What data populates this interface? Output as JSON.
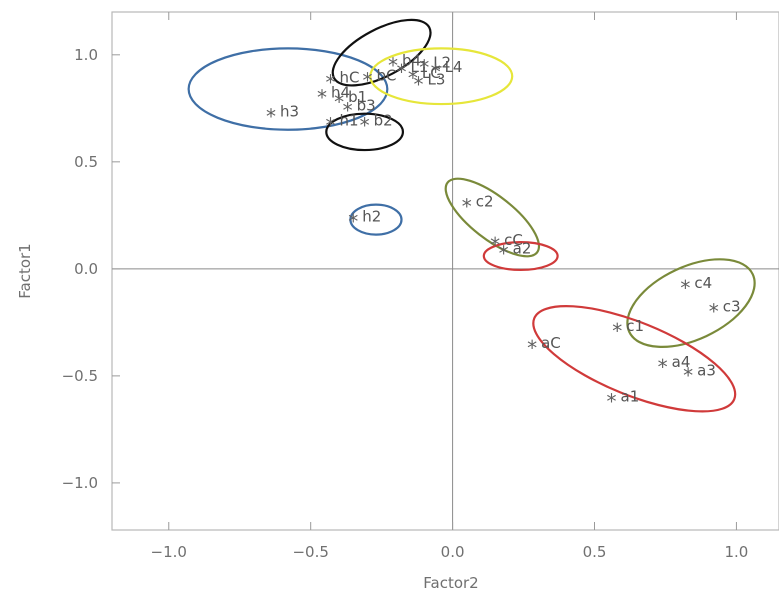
{
  "chart_data": {
    "type": "scatter",
    "title": "",
    "xlabel": "Factor2",
    "ylabel": "Factor1",
    "xlim": [
      -1.2,
      1.15
    ],
    "ylim": [
      -1.22,
      1.2
    ],
    "xticks": [
      -1.0,
      -0.5,
      0.0,
      0.5,
      1.0
    ],
    "xtick_labels": [
      "−1.0",
      "−0.5",
      "0.0",
      "0.5",
      "1.0"
    ],
    "yticks": [
      -1.0,
      -0.5,
      0.0,
      0.5,
      1.0
    ],
    "ytick_labels": [
      "−1.0",
      "−0.5",
      "0.0",
      "0.5",
      "1.0"
    ],
    "marker": "*",
    "grid": false,
    "zero_lines": true,
    "points": [
      {
        "label": "h3",
        "x": -0.64,
        "y": 0.72
      },
      {
        "label": "h4",
        "x": -0.46,
        "y": 0.81
      },
      {
        "label": "hC",
        "x": -0.43,
        "y": 0.88
      },
      {
        "label": "b1",
        "x": -0.4,
        "y": 0.79
      },
      {
        "label": "b3",
        "x": -0.37,
        "y": 0.75
      },
      {
        "label": "h1",
        "x": -0.43,
        "y": 0.68
      },
      {
        "label": "bC",
        "x": -0.3,
        "y": 0.89
      },
      {
        "label": "b2",
        "x": -0.31,
        "y": 0.68
      },
      {
        "label": "b4",
        "x": -0.21,
        "y": 0.96
      },
      {
        "label": "L1",
        "x": -0.18,
        "y": 0.93
      },
      {
        "label": "L2",
        "x": -0.1,
        "y": 0.95
      },
      {
        "label": "L4",
        "x": -0.06,
        "y": 0.93
      },
      {
        "label": "L3",
        "x": -0.12,
        "y": 0.87
      },
      {
        "label": "LC",
        "x": -0.14,
        "y": 0.9
      },
      {
        "label": "h2",
        "x": -0.35,
        "y": 0.23
      },
      {
        "label": "c2",
        "x": 0.05,
        "y": 0.3
      },
      {
        "label": "cC",
        "x": 0.15,
        "y": 0.12
      },
      {
        "label": "a2",
        "x": 0.18,
        "y": 0.08
      },
      {
        "label": "c4",
        "x": 0.82,
        "y": -0.08
      },
      {
        "label": "c3",
        "x": 0.92,
        "y": -0.19
      },
      {
        "label": "c1",
        "x": 0.58,
        "y": -0.28
      },
      {
        "label": "aC",
        "x": 0.28,
        "y": -0.36
      },
      {
        "label": "a4",
        "x": 0.74,
        "y": -0.45
      },
      {
        "label": "a3",
        "x": 0.83,
        "y": -0.49
      },
      {
        "label": "a1",
        "x": 0.56,
        "y": -0.61
      }
    ],
    "clusters": [
      {
        "color": "#3f6fa6",
        "center": [
          -0.58,
          0.84
        ],
        "radii": [
          0.35,
          0.19
        ],
        "angle": 0
      },
      {
        "color": "#111111",
        "center": [
          -0.25,
          1.01
        ],
        "radii": [
          0.19,
          0.11
        ],
        "angle": 28
      },
      {
        "color": "#e6e63a",
        "center": [
          -0.04,
          0.9
        ],
        "radii": [
          0.25,
          0.13
        ],
        "angle": 0
      },
      {
        "color": "#111111",
        "center": [
          -0.31,
          0.64
        ],
        "radii": [
          0.135,
          0.085
        ],
        "angle": 0
      },
      {
        "color": "#3f6fa6",
        "center": [
          -0.27,
          0.23
        ],
        "radii": [
          0.09,
          0.07
        ],
        "angle": 0
      },
      {
        "color": "#7a8a3a",
        "center": [
          0.14,
          0.24
        ],
        "radii": [
          0.2,
          0.1
        ],
        "angle": -38
      },
      {
        "color": "#d03a3a",
        "center": [
          0.24,
          0.06
        ],
        "radii": [
          0.13,
          0.065
        ],
        "angle": 0
      },
      {
        "color": "#7a8a3a",
        "center": [
          0.84,
          -0.16
        ],
        "radii": [
          0.24,
          0.17
        ],
        "angle": 25
      },
      {
        "color": "#d03a3a",
        "center": [
          0.64,
          -0.42
        ],
        "radii": [
          0.38,
          0.17
        ],
        "angle": -22
      }
    ]
  }
}
